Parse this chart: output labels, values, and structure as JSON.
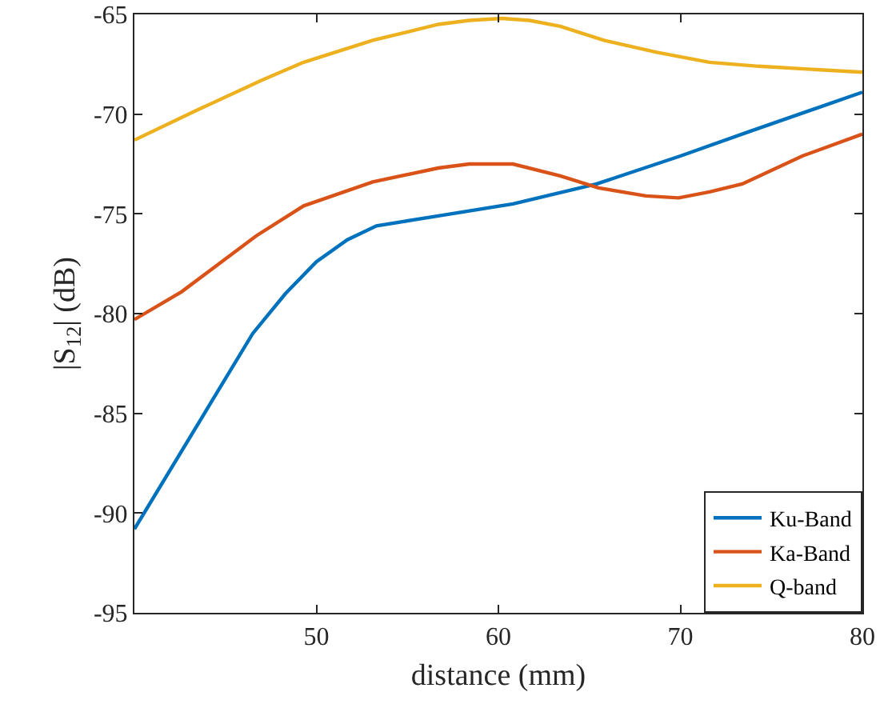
{
  "chart_data": {
    "type": "line",
    "xlabel": "distance (mm)",
    "ylabel": "|S$_{12}$| (dB)",
    "xlim": [
      40,
      80
    ],
    "xticks": [
      50,
      60,
      70,
      80
    ],
    "ylim": [
      -95,
      -65
    ],
    "yticks": [
      -95,
      -90,
      -85,
      -80,
      -75,
      -70,
      -65
    ],
    "grid": false,
    "legend": "bottom right",
    "marker": "none",
    "line_style": "solid",
    "series": [
      {
        "name": "Ku-Band",
        "color": "#0072bd",
        "x": [
          40,
          46.5,
          48.3,
          50,
          51.7,
          53.3,
          56.7,
          60.8,
          65.4,
          70,
          73.7,
          80
        ],
        "values": [
          -90.8,
          -81,
          -79,
          -77.4,
          -76.3,
          -75.6,
          -75.1,
          -74.5,
          -73.5,
          -72.1,
          -70.9,
          -68.9
        ]
      },
      {
        "name": "Ka-Band",
        "color": "#d95319",
        "x": [
          40,
          42.6,
          46.7,
          49.3,
          53.1,
          56.7,
          58.4,
          60.8,
          63.4,
          65.5,
          68.1,
          69.9,
          71.6,
          73.4,
          76.7,
          80
        ],
        "values": [
          -80.3,
          -78.9,
          -76.1,
          -74.6,
          -73.4,
          -72.7,
          -72.5,
          -72.5,
          -73.1,
          -73.7,
          -74.1,
          -74.2,
          -73.9,
          -73.5,
          -72.1,
          -71
        ]
      },
      {
        "name": "Q-band",
        "color": "#edb120",
        "x": [
          40,
          43.2,
          47,
          49.3,
          53.1,
          56.7,
          58.4,
          60.2,
          61.7,
          63.4,
          65.8,
          68.7,
          71.6,
          74.3,
          80
        ],
        "values": [
          -71.3,
          -69.9,
          -68.3,
          -67.4,
          -66.3,
          -65.5,
          -65.3,
          -65.2,
          -65.3,
          -65.6,
          -66.3,
          -66.9,
          -67.4,
          -67.6,
          -67.9
        ]
      }
    ]
  }
}
